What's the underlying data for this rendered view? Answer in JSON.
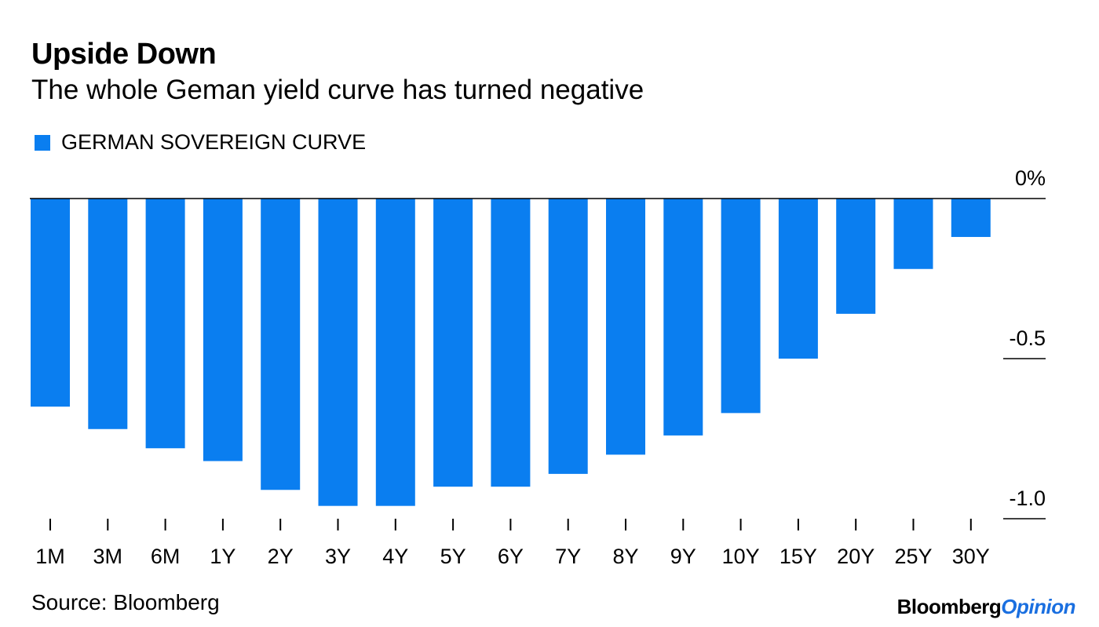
{
  "colors": {
    "bar": "#0a7ef0",
    "axis": "#000000",
    "brand_accent": "#1a6fe0"
  },
  "chart_data": {
    "type": "bar",
    "title": "Upside Down",
    "subtitle": "The whole Geman yield curve has turned negative",
    "xlabel": "",
    "ylabel": "",
    "categories": [
      "1M",
      "3M",
      "6M",
      "1Y",
      "2Y",
      "3Y",
      "4Y",
      "5Y",
      "6Y",
      "7Y",
      "8Y",
      "9Y",
      "10Y",
      "15Y",
      "20Y",
      "25Y",
      "30Y"
    ],
    "series": [
      {
        "name": "GERMAN SOVEREIGN CURVE",
        "values": [
          -0.65,
          -0.72,
          -0.78,
          -0.82,
          -0.91,
          -0.96,
          -0.96,
          -0.9,
          -0.9,
          -0.86,
          -0.8,
          -0.74,
          -0.67,
          -0.5,
          -0.36,
          -0.22,
          -0.12
        ]
      }
    ],
    "yticks": [
      {
        "value": 0,
        "label": "0%"
      },
      {
        "value": -0.5,
        "label": "-0.5"
      },
      {
        "value": -1.0,
        "label": "-1.0"
      }
    ],
    "ylim": [
      -1.0,
      0
    ],
    "grid": false,
    "legend_position": "top-left",
    "source": "Source: Bloomberg"
  },
  "brand": {
    "part1": "Bloomberg",
    "part2": "Opinion"
  }
}
